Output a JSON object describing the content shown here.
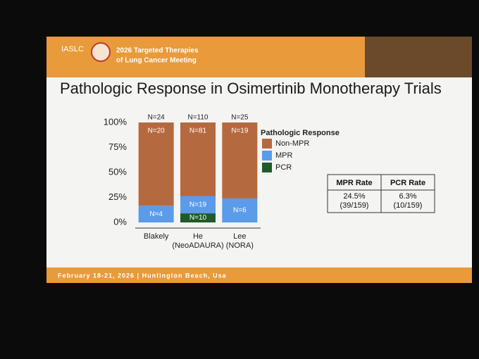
{
  "header": {
    "logo": "IASLC",
    "meeting": [
      "2026 Targeted Therapies",
      "of Lung Cancer Meeting"
    ]
  },
  "title": "Pathologic Response in Osimertinib Monotherapy Trials",
  "chart_data": {
    "type": "bar",
    "stacked": true,
    "categories": [
      [
        "Blakely"
      ],
      [
        "He",
        "(NeoADAURA)"
      ],
      [
        "Lee",
        "(NORA)"
      ]
    ],
    "series": [
      {
        "name": "PCR",
        "color": "#1f5a2a",
        "values": [
          0,
          9.1,
          0
        ],
        "labels": [
          null,
          "N=10",
          null
        ]
      },
      {
        "name": "MPR",
        "color": "#5b9bea",
        "values": [
          16.7,
          17.3,
          24
        ],
        "labels": [
          "N=4",
          "N=19",
          "N=6"
        ]
      },
      {
        "name": "Non-MPR",
        "color": "#b5693f",
        "values": [
          83.3,
          73.6,
          76
        ],
        "labels": [
          "N=20",
          "N=81",
          "N=19"
        ]
      }
    ],
    "total_labels": [
      "N=24",
      "N=110",
      "N=25"
    ],
    "legend_title": "Pathologic Response",
    "ylim": [
      0,
      100
    ],
    "yticks": [
      {
        "value": 0,
        "label": "0%"
      },
      {
        "value": 25,
        "label": "25%"
      },
      {
        "value": 50,
        "label": "50%"
      },
      {
        "value": 75,
        "label": "75%"
      },
      {
        "value": 100,
        "label": "100%"
      }
    ]
  },
  "table": {
    "header": [
      "MPR Rate",
      "PCR Rate"
    ],
    "rows": [
      [
        [
          "24.5%",
          "(39/159)"
        ],
        [
          "6.3%",
          "(10/159)"
        ]
      ]
    ]
  },
  "footer": "February 18-21, 2026 | Huntington Beach, Usa"
}
